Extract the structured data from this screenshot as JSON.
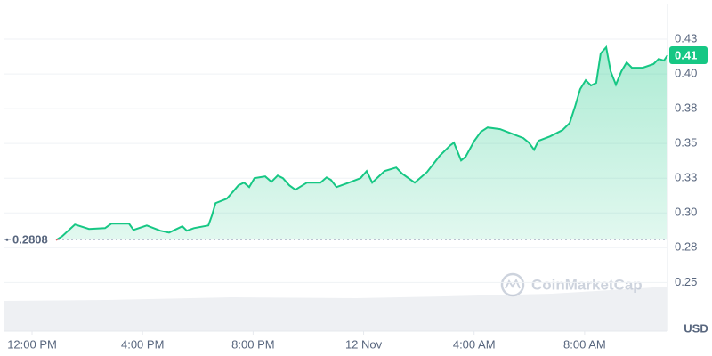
{
  "chart_data": {
    "type": "line",
    "x": [
      12.87,
      13.09,
      13.55,
      14.06,
      14.64,
      14.87,
      15.51,
      15.67,
      16.15,
      16.64,
      16.96,
      17.44,
      17.6,
      17.86,
      18.38,
      18.51,
      18.64,
      19.05,
      19.28,
      19.47,
      19.67,
      19.86,
      20.05,
      20.44,
      20.66,
      20.89,
      21.08,
      21.31,
      21.53,
      21.95,
      22.44,
      22.66,
      22.82,
      23.02,
      23.47,
      23.89,
      24.11,
      24.31,
      24.76,
      25.18,
      25.4,
      25.85,
      26.3,
      26.75,
      27.14,
      27.27,
      27.53,
      27.69,
      28.01,
      28.24,
      28.49,
      28.94,
      29.36,
      29.78,
      29.98,
      30.17,
      30.33,
      30.75,
      31.2,
      31.46,
      31.65,
      31.84,
      32.04,
      32.23,
      32.42,
      32.58,
      32.78,
      32.94,
      33.13,
      33.33,
      33.52,
      33.71,
      34.1,
      34.49,
      34.68,
      34.87,
      35.0
    ],
    "values": [
      0.2805,
      0.2833,
      0.2917,
      0.2885,
      0.2891,
      0.2923,
      0.2923,
      0.2878,
      0.291,
      0.2872,
      0.2859,
      0.2904,
      0.2872,
      0.2891,
      0.291,
      0.2981,
      0.3071,
      0.3103,
      0.3154,
      0.3199,
      0.3218,
      0.3186,
      0.325,
      0.3263,
      0.3224,
      0.3269,
      0.325,
      0.3199,
      0.3167,
      0.3218,
      0.3218,
      0.3256,
      0.3237,
      0.3186,
      0.3218,
      0.325,
      0.3301,
      0.3218,
      0.3301,
      0.3327,
      0.3282,
      0.3218,
      0.3295,
      0.341,
      0.3487,
      0.3506,
      0.3378,
      0.3404,
      0.3519,
      0.3583,
      0.3615,
      0.3603,
      0.3571,
      0.3539,
      0.3506,
      0.3455,
      0.3519,
      0.3551,
      0.3596,
      0.3647,
      0.3763,
      0.3891,
      0.3955,
      0.3917,
      0.3936,
      0.4147,
      0.4192,
      0.4019,
      0.3923,
      0.4019,
      0.4083,
      0.4045,
      0.4045,
      0.4071,
      0.4109,
      0.4096,
      0.4135
    ],
    "color": "#16c784",
    "down_color": "#ea3943",
    "xlim": [
      11,
      35
    ],
    "xticks": [
      {
        "value": 12,
        "label": "12:00 PM"
      },
      {
        "value": 16,
        "label": "4:00 PM"
      },
      {
        "value": 20,
        "label": "8:00 PM"
      },
      {
        "value": 24,
        "label": "12 Nov"
      },
      {
        "value": 28,
        "label": "4:00 AM"
      },
      {
        "value": 32,
        "label": "8:00 AM"
      }
    ],
    "ylim": [
      0.215,
      0.45
    ],
    "yticks": [
      0.25,
      {
        "value": 0.275,
        "label": "0.28"
      },
      {
        "value": 0.3,
        "label": "0.30"
      },
      {
        "value": 0.325,
        "label": "0.33"
      },
      0.35,
      {
        "value": 0.375,
        "label": "0.38"
      },
      {
        "value": 0.4,
        "label": "0.40"
      },
      {
        "value": 0.425,
        "label": "0.43"
      }
    ],
    "grid": true,
    "reference_line": 0.2808,
    "current_price": {
      "value": 0.4135,
      "label": "0.41"
    },
    "y_unit": "USD",
    "watermark": "CoinMarketCap"
  }
}
